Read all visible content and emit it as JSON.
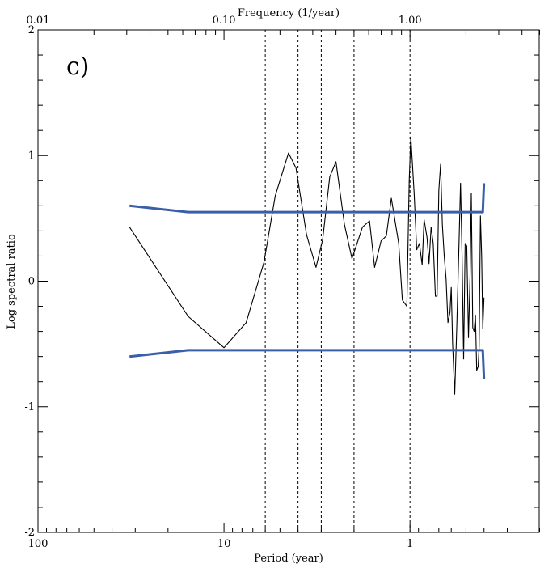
{
  "chart_data": {
    "type": "line",
    "panel_label": "c)",
    "xlabel_bottom": "Period (year)",
    "xlabel_top": "Frequency (1/year)",
    "ylabel": "Log spectral ratio",
    "x_scale": "log",
    "x_reversed": true,
    "xlim_period": [
      100,
      0.2
    ],
    "ylim": [
      -2,
      2
    ],
    "bottom_ticks": [
      {
        "value": 100,
        "label": "100"
      },
      {
        "value": 10,
        "label": "10"
      },
      {
        "value": 1,
        "label": "1"
      }
    ],
    "top_ticks": [
      {
        "value": 0.01,
        "label": "0.01"
      },
      {
        "value": 0.1,
        "label": "0.10"
      },
      {
        "value": 1,
        "label": "1.00"
      }
    ],
    "y_ticks": [
      {
        "value": 2,
        "label": "2"
      },
      {
        "value": 1,
        "label": "1"
      },
      {
        "value": 0,
        "label": "0"
      },
      {
        "value": -1,
        "label": "-1"
      },
      {
        "value": -2,
        "label": "-2"
      }
    ],
    "vertical_lines_period": [
      6.0,
      4.0,
      3.0,
      2.0,
      1.0
    ],
    "series": [
      {
        "color": "#000000",
        "points": [
          [
            32.2,
            0.43
          ],
          [
            15.6,
            -0.28
          ],
          [
            10.0,
            -0.53
          ],
          [
            7.6,
            -0.33
          ],
          [
            6.1,
            0.15
          ],
          [
            5.3,
            0.68
          ],
          [
            4.5,
            1.02
          ],
          [
            4.1,
            0.9
          ],
          [
            3.6,
            0.37
          ],
          [
            3.2,
            0.11
          ],
          [
            2.95,
            0.33
          ],
          [
            2.7,
            0.83
          ],
          [
            2.5,
            0.95
          ],
          [
            2.25,
            0.45
          ],
          [
            2.05,
            0.18
          ],
          [
            1.8,
            0.43
          ],
          [
            1.65,
            0.48
          ],
          [
            1.55,
            0.11
          ],
          [
            1.43,
            0.32
          ],
          [
            1.34,
            0.36
          ],
          [
            1.26,
            0.66
          ],
          [
            1.15,
            0.3
          ],
          [
            1.1,
            -0.15
          ],
          [
            1.04,
            -0.2
          ],
          [
            1.01,
            0.8
          ],
          [
            0.99,
            1.15
          ],
          [
            0.95,
            0.7
          ],
          [
            0.92,
            0.25
          ],
          [
            0.89,
            0.3
          ],
          [
            0.86,
            0.13
          ],
          [
            0.84,
            0.49
          ],
          [
            0.81,
            0.35
          ],
          [
            0.79,
            0.14
          ],
          [
            0.77,
            0.43
          ],
          [
            0.75,
            0.3
          ],
          [
            0.73,
            -0.12
          ],
          [
            0.715,
            -0.12
          ],
          [
            0.7,
            0.72
          ],
          [
            0.685,
            0.93
          ],
          [
            0.67,
            0.45
          ],
          [
            0.655,
            0.2
          ],
          [
            0.64,
            0.02
          ],
          [
            0.625,
            -0.33
          ],
          [
            0.61,
            -0.25
          ],
          [
            0.6,
            -0.05
          ],
          [
            0.59,
            -0.5
          ],
          [
            0.575,
            -0.9
          ],
          [
            0.56,
            -0.35
          ],
          [
            0.545,
            0.3
          ],
          [
            0.535,
            0.78
          ],
          [
            0.525,
            0.2
          ],
          [
            0.515,
            -0.62
          ],
          [
            0.505,
            0.3
          ],
          [
            0.495,
            0.28
          ],
          [
            0.485,
            -0.45
          ],
          [
            0.475,
            0.07
          ],
          [
            0.468,
            0.7
          ],
          [
            0.46,
            -0.37
          ],
          [
            0.452,
            -0.4
          ],
          [
            0.445,
            -0.27
          ],
          [
            0.438,
            -0.71
          ],
          [
            0.43,
            -0.68
          ],
          [
            0.425,
            -0.52
          ],
          [
            0.418,
            0.52
          ],
          [
            0.412,
            0.2
          ],
          [
            0.406,
            -0.38
          ],
          [
            0.4,
            -0.13
          ]
        ]
      },
      {
        "color": "#3a5ea8",
        "points": [
          [
            32.2,
            0.6
          ],
          [
            15.6,
            0.55
          ],
          [
            0.406,
            0.55
          ],
          [
            0.4,
            0.78
          ]
        ]
      },
      {
        "color": "#3a5ea8",
        "points": [
          [
            32.2,
            -0.6
          ],
          [
            15.6,
            -0.55
          ],
          [
            0.406,
            -0.55
          ],
          [
            0.4,
            -0.78
          ]
        ]
      }
    ],
    "grid": false,
    "legend": "none"
  }
}
